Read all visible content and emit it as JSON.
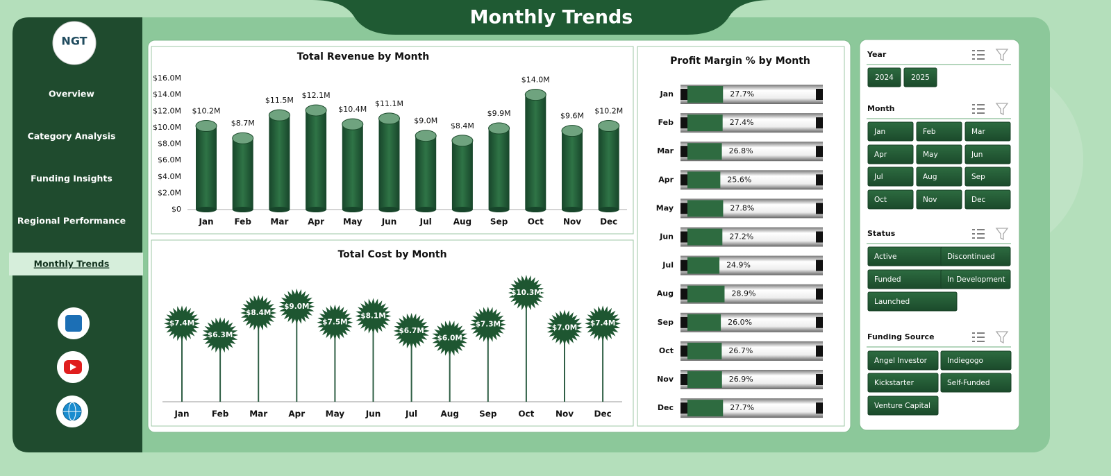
{
  "title": "Monthly Trends",
  "logo": "NGT",
  "nav": [
    "Overview",
    "Category Analysis",
    "Funding Insights",
    "Regional Performance",
    "Monthly Trends"
  ],
  "active_nav": 4,
  "chart_data": [
    {
      "type": "bar",
      "title": "Total Revenue  by Month",
      "categories": [
        "Jan",
        "Feb",
        "Mar",
        "Apr",
        "May",
        "Jun",
        "Jul",
        "Aug",
        "Sep",
        "Oct",
        "Nov",
        "Dec"
      ],
      "values": [
        10200000,
        8700000,
        11500000,
        12100000,
        10400000,
        11100000,
        9000000,
        8400000,
        9900000,
        14000000,
        9600000,
        10200000
      ],
      "value_labels": [
        "$10.2M",
        "$8.7M",
        "$11.5M",
        "$12.1M",
        "$10.4M",
        "$11.1M",
        "$9.0M",
        "$8.4M",
        "$9.9M",
        "$14.0M",
        "$9.6M",
        "$10.2M"
      ],
      "ylim": [
        0,
        16000000
      ],
      "yticks": [
        {
          "value": 0,
          "label": "$0"
        },
        {
          "value": 2000000,
          "label": "$2.0M"
        },
        {
          "value": 4000000,
          "label": "$4.0M"
        },
        {
          "value": 6000000,
          "label": "$6.0M"
        },
        {
          "value": 8000000,
          "label": "$8.0M"
        },
        {
          "value": 10000000,
          "label": "$10.0M"
        },
        {
          "value": 12000000,
          "label": "$12.0M"
        },
        {
          "value": 14000000,
          "label": "$14.0M"
        },
        {
          "value": 16000000,
          "label": "$16.0M"
        }
      ],
      "color": "#1e5631"
    },
    {
      "type": "lollipop",
      "title": "Total Cost by Month",
      "categories": [
        "Jan",
        "Feb",
        "Mar",
        "Apr",
        "May",
        "Jun",
        "Jul",
        "Aug",
        "Sep",
        "Oct",
        "Nov",
        "Dec"
      ],
      "values": [
        7.4,
        6.3,
        8.4,
        9.0,
        7.5,
        8.1,
        6.7,
        6.0,
        7.3,
        10.3,
        7.0,
        7.4
      ],
      "value_labels": [
        "$7.4M",
        "$6.3M",
        "$8.4M",
        "$9.0M",
        "$7.5M",
        "$8.1M",
        "$6.7M",
        "$6.0M",
        "$7.3M",
        "$10.3M",
        "$7.0M",
        "$7.4M"
      ],
      "color": "#1e5631"
    },
    {
      "type": "progress",
      "title": "Profit Margin % by Month",
      "categories": [
        "Jan",
        "Feb",
        "Mar",
        "Apr",
        "May",
        "Jun",
        "Jul",
        "Aug",
        "Sep",
        "Oct",
        "Nov",
        "Dec"
      ],
      "values": [
        27.7,
        27.4,
        26.8,
        25.6,
        27.8,
        27.2,
        24.9,
        28.9,
        26.0,
        26.7,
        26.9,
        27.7
      ],
      "value_labels": [
        "27.7%",
        "27.4%",
        "26.8%",
        "25.6%",
        "27.8%",
        "27.2%",
        "24.9%",
        "28.9%",
        "26.0%",
        "26.7%",
        "26.9%",
        "27.7%"
      ],
      "xlim": [
        0,
        100
      ],
      "color": "#2e6b40"
    }
  ],
  "slicers": [
    {
      "title": "Year",
      "items": [
        "2024",
        "2025"
      ]
    },
    {
      "title": "Month",
      "items": [
        "Jan",
        "Feb",
        "Mar",
        "Apr",
        "May",
        "Jun",
        "Jul",
        "Aug",
        "Sep",
        "Oct",
        "Nov",
        "Dec"
      ]
    },
    {
      "title": "Status",
      "items": [
        "Active",
        "Discontinued",
        "Funded",
        "In Development",
        "Launched"
      ]
    },
    {
      "title": "Funding Source",
      "items": [
        "Angel Investor",
        "Indiegogo",
        "Kickstarter",
        "Self-Funded",
        "Venture Capital"
      ]
    }
  ]
}
